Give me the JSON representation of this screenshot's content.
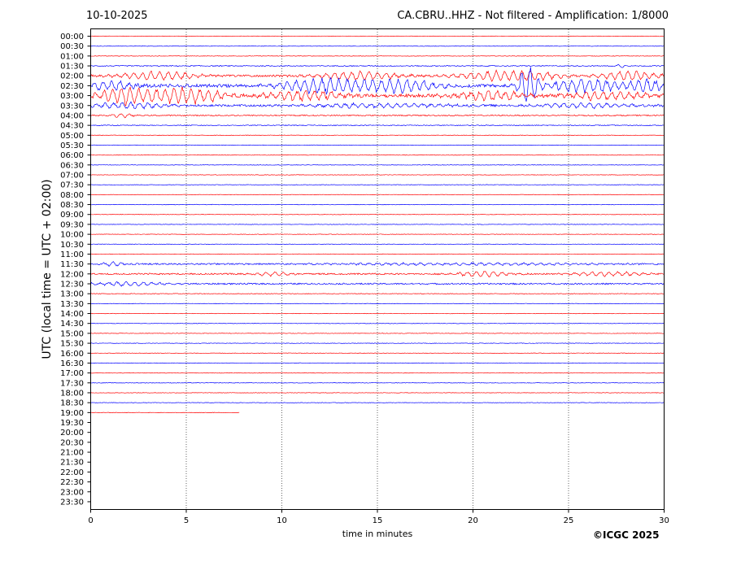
{
  "header": {
    "date": "10-10-2025",
    "title": "CA.CBRU..HHZ - Not filtered - Amplification: 1/8000"
  },
  "footer": {
    "copyright": "©ICGC 2025"
  },
  "colors": {
    "trace_a": "#ff0000",
    "trace_b": "#0000ff",
    "frame": "#000000",
    "grid": "#000000"
  },
  "chart_data": {
    "type": "line",
    "title": "CA.CBRU..HHZ - Not filtered - Amplification: 1/8000",
    "xlabel": "time in minutes",
    "ylabel": "UTC (local time = UTC + 02:00)",
    "xlim": [
      0,
      30
    ],
    "x_ticks": [
      "0",
      "5",
      "10",
      "15",
      "20",
      "25",
      "30"
    ],
    "grid": "vertical dotted lines at 5, 10, 15, 20, 25",
    "y_ticks": [
      "00:00",
      "00:30",
      "01:00",
      "01:30",
      "02:00",
      "02:30",
      "03:00",
      "03:30",
      "04:00",
      "04:30",
      "05:00",
      "05:30",
      "06:00",
      "06:30",
      "07:00",
      "07:30",
      "08:00",
      "08:30",
      "09:00",
      "09:30",
      "10:00",
      "10:30",
      "11:00",
      "11:30",
      "12:00",
      "12:30",
      "13:00",
      "13:30",
      "14:00",
      "14:30",
      "15:00",
      "15:30",
      "16:00",
      "16:30",
      "17:00",
      "17:30",
      "18:00",
      "18:30",
      "19:00",
      "19:30",
      "20:00",
      "20:30",
      "21:00",
      "21:30",
      "22:00",
      "22:30",
      "23:00",
      "23:30"
    ],
    "series": [
      {
        "row": 0,
        "color": "red",
        "end": 30,
        "amp": 0.3
      },
      {
        "row": 1,
        "color": "blue",
        "end": 30,
        "amp": 0.3
      },
      {
        "row": 2,
        "color": "red",
        "end": 30,
        "amp": 0.3
      },
      {
        "row": 3,
        "color": "blue",
        "end": 30,
        "amp": 0.6,
        "events": [
          {
            "t": 27.7,
            "a": 2,
            "w": 0.5
          }
        ]
      },
      {
        "row": 4,
        "color": "red",
        "end": 30,
        "amp": 1.2,
        "events": [
          {
            "t": 3.5,
            "a": 6,
            "w": 3
          },
          {
            "t": 14,
            "a": 6,
            "w": 3
          },
          {
            "t": 22,
            "a": 7,
            "w": 4
          },
          {
            "t": 28,
            "a": 6,
            "w": 2.5
          }
        ]
      },
      {
        "row": 5,
        "color": "blue",
        "end": 30,
        "amp": 2,
        "events": [
          {
            "t": 1,
            "a": 6,
            "w": 2
          },
          {
            "t": 12,
            "a": 10,
            "w": 3
          },
          {
            "t": 16,
            "a": 9,
            "w": 3
          },
          {
            "t": 22.9,
            "a": 26,
            "w": 0.7
          },
          {
            "t": 26,
            "a": 9,
            "w": 3
          },
          {
            "t": 29,
            "a": 10,
            "w": 1.5
          }
        ]
      },
      {
        "row": 6,
        "color": "red",
        "end": 30,
        "amp": 2,
        "events": [
          {
            "t": 1.8,
            "a": 12,
            "w": 2
          },
          {
            "t": 5,
            "a": 10,
            "w": 3
          },
          {
            "t": 11,
            "a": 7,
            "w": 3
          },
          {
            "t": 21,
            "a": 6,
            "w": 3
          },
          {
            "t": 27,
            "a": 6,
            "w": 3
          }
        ]
      },
      {
        "row": 7,
        "color": "blue",
        "end": 30,
        "amp": 1.2,
        "events": [
          {
            "t": 2,
            "a": 4,
            "w": 3
          },
          {
            "t": 15,
            "a": 3,
            "w": 6
          },
          {
            "t": 26,
            "a": 3,
            "w": 4
          }
        ]
      },
      {
        "row": 8,
        "color": "red",
        "end": 30,
        "amp": 0.7,
        "events": [
          {
            "t": 1.6,
            "a": 3,
            "w": 0.8
          }
        ]
      },
      {
        "row": 9,
        "color": "blue",
        "end": 30,
        "amp": 0.5
      },
      {
        "row": 10,
        "color": "red",
        "end": 30,
        "amp": 0.3
      },
      {
        "row": 11,
        "color": "blue",
        "end": 30,
        "amp": 0.3
      },
      {
        "row": 12,
        "color": "red",
        "end": 30,
        "amp": 0.3
      },
      {
        "row": 13,
        "color": "blue",
        "end": 30,
        "amp": 0.3
      },
      {
        "row": 14,
        "color": "red",
        "end": 30,
        "amp": 0.3
      },
      {
        "row": 15,
        "color": "blue",
        "end": 30,
        "amp": 0.3
      },
      {
        "row": 16,
        "color": "red",
        "end": 30,
        "amp": 0.3
      },
      {
        "row": 17,
        "color": "blue",
        "end": 30,
        "amp": 0.3
      },
      {
        "row": 18,
        "color": "red",
        "end": 30,
        "amp": 0.3
      },
      {
        "row": 19,
        "color": "blue",
        "end": 30,
        "amp": 0.3
      },
      {
        "row": 20,
        "color": "red",
        "end": 30,
        "amp": 0.3
      },
      {
        "row": 21,
        "color": "blue",
        "end": 30,
        "amp": 0.3
      },
      {
        "row": 22,
        "color": "red",
        "end": 30,
        "amp": 0.3
      },
      {
        "row": 23,
        "color": "blue",
        "end": 30,
        "amp": 0.9,
        "events": [
          {
            "t": 1.2,
            "a": 3,
            "w": 0.8
          },
          {
            "t": 20,
            "a": 1.5,
            "w": 10
          }
        ]
      },
      {
        "row": 24,
        "color": "red",
        "end": 30,
        "amp": 0.9,
        "events": [
          {
            "t": 9.5,
            "a": 3,
            "w": 1.5
          },
          {
            "t": 20.5,
            "a": 4,
            "w": 2
          },
          {
            "t": 27,
            "a": 3,
            "w": 3
          }
        ]
      },
      {
        "row": 25,
        "color": "blue",
        "end": 30,
        "amp": 0.9,
        "events": [
          {
            "t": 2,
            "a": 2.5,
            "w": 2.5
          }
        ]
      },
      {
        "row": 26,
        "color": "red",
        "end": 30,
        "amp": 0.4
      },
      {
        "row": 27,
        "color": "blue",
        "end": 30,
        "amp": 0.3
      },
      {
        "row": 28,
        "color": "red",
        "end": 30,
        "amp": 0.3
      },
      {
        "row": 29,
        "color": "blue",
        "end": 30,
        "amp": 0.3
      },
      {
        "row": 30,
        "color": "red",
        "end": 30,
        "amp": 0.3
      },
      {
        "row": 31,
        "color": "blue",
        "end": 30,
        "amp": 0.3
      },
      {
        "row": 32,
        "color": "red",
        "end": 30,
        "amp": 0.3
      },
      {
        "row": 33,
        "color": "blue",
        "end": 30,
        "amp": 0.3
      },
      {
        "row": 34,
        "color": "red",
        "end": 30,
        "amp": 0.3
      },
      {
        "row": 35,
        "color": "blue",
        "end": 30,
        "amp": 0.3
      },
      {
        "row": 36,
        "color": "red",
        "end": 30,
        "amp": 0.3
      },
      {
        "row": 37,
        "color": "blue",
        "end": 30,
        "amp": 0.3
      },
      {
        "row": 38,
        "color": "red",
        "end": 7.8,
        "amp": 0.3
      }
    ]
  }
}
